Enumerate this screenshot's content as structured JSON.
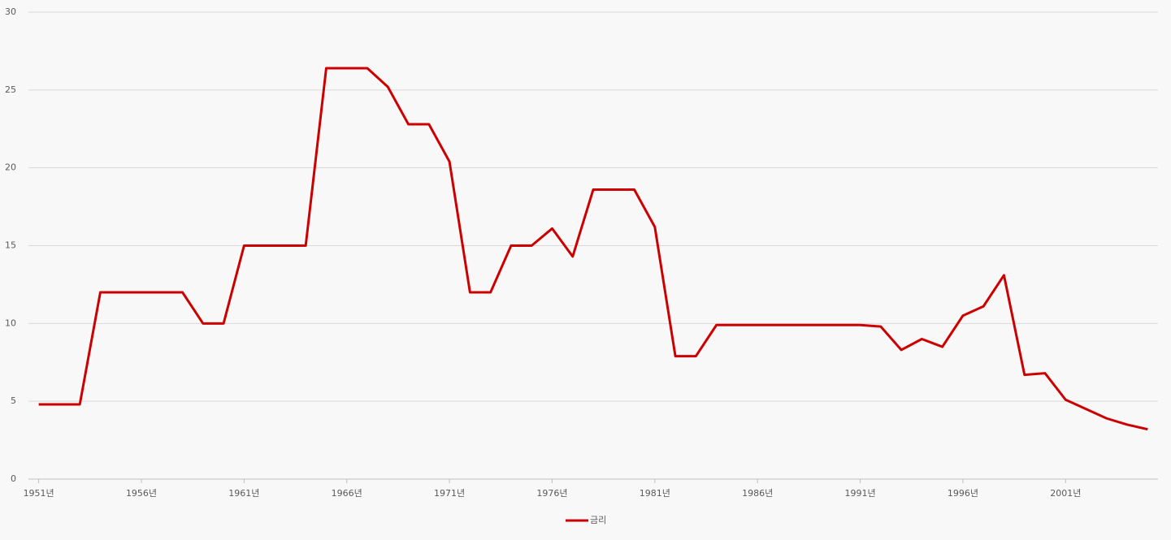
{
  "chart_data": {
    "type": "line",
    "x": [
      1951,
      1952,
      1953,
      1954,
      1955,
      1956,
      1957,
      1958,
      1959,
      1960,
      1961,
      1962,
      1963,
      1964,
      1965,
      1966,
      1967,
      1968,
      1969,
      1970,
      1971,
      1972,
      1973,
      1974,
      1975,
      1976,
      1977,
      1978,
      1979,
      1980,
      1981,
      1982,
      1983,
      1984,
      1985,
      1986,
      1987,
      1988,
      1989,
      1990,
      1991,
      1992,
      1993,
      1994,
      1995,
      1996,
      1997,
      1998,
      1999,
      2000,
      2001,
      2002,
      2003,
      2004,
      2005
    ],
    "series": [
      {
        "name": "금리",
        "color": "#cc0000",
        "values": [
          4.8,
          4.8,
          4.8,
          12,
          12,
          12,
          12,
          12,
          10,
          10,
          15,
          15,
          15,
          15,
          26.4,
          26.4,
          26.4,
          25.2,
          22.8,
          22.8,
          20.4,
          12,
          12,
          15,
          15,
          16.1,
          14.3,
          18.6,
          18.6,
          18.6,
          16.2,
          7.9,
          7.9,
          9.9,
          9.9,
          9.9,
          9.9,
          9.9,
          9.9,
          9.9,
          9.9,
          9.8,
          8.3,
          9.0,
          8.5,
          10.5,
          11.1,
          13.1,
          6.7,
          6.8,
          5.1,
          4.5,
          3.9,
          3.5,
          3.2
        ]
      }
    ],
    "xlim": [
      1950.5,
      2005.5
    ],
    "xticks": [
      {
        "value": 1951,
        "label": "1951년"
      },
      {
        "value": 1956,
        "label": "1956년"
      },
      {
        "value": 1961,
        "label": "1961년"
      },
      {
        "value": 1966,
        "label": "1966년"
      },
      {
        "value": 1971,
        "label": "1971년"
      },
      {
        "value": 1976,
        "label": "1976년"
      },
      {
        "value": 1981,
        "label": "1981년"
      },
      {
        "value": 1986,
        "label": "1986년"
      },
      {
        "value": 1991,
        "label": "1991년"
      },
      {
        "value": 1996,
        "label": "1996년"
      },
      {
        "value": 2001,
        "label": "2001년"
      }
    ],
    "ylim": [
      0,
      30
    ],
    "yticks": [
      0,
      5,
      10,
      15,
      20,
      25,
      30
    ],
    "grid": true,
    "legend": "bottom"
  }
}
